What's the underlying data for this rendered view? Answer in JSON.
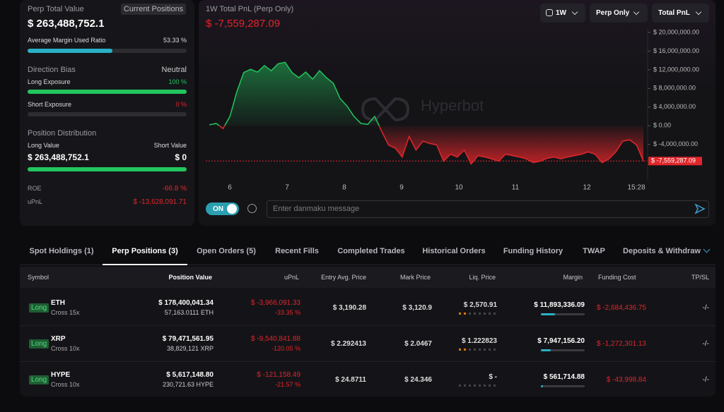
{
  "summary": {
    "title": "Perp Total Value",
    "badge": "Current Positions",
    "total_value": "$ 263,488,752.1",
    "margin_ratio_label": "Average Margin Used Ratio",
    "margin_ratio": {
      "value": 53.33,
      "label": "53.33 %"
    },
    "direction_bias_label": "Direction Bias",
    "direction_bias": "Neutral",
    "long_exposure_label": "Long Exposure",
    "long_exposure": {
      "value": 100,
      "label": "100 %"
    },
    "short_exposure_label": "Short Exposure",
    "short_exposure": {
      "value": 0,
      "label": "0 %"
    },
    "distribution_label": "Position Distribution",
    "long_value_label": "Long Value",
    "short_value_label": "Short Value",
    "long_value": "$ 263,488,752.1",
    "short_value": "$ 0",
    "roe_label": "ROE",
    "roe": "-66.8 %",
    "upnl_label": "uPnL",
    "upnl": "$ -13,628,091.71"
  },
  "pnl_chart": {
    "type": "line",
    "title": "1W Total PnL (Perp Only)",
    "current_label": "$ -7,559,287.09",
    "watermark": "Hyperbot",
    "controls": {
      "range": "1W",
      "scope": "Perp Only",
      "metric": "Total PnL"
    },
    "x_labels": [
      "6",
      "7",
      "8",
      "9",
      "10",
      "11",
      "12",
      "15:28"
    ],
    "values": [
      200000,
      500000,
      -600000,
      2000000,
      7300000,
      11400000,
      12100000,
      11500000,
      12900000,
      11800000,
      13300000,
      13600000,
      11400000,
      10300000,
      11500000,
      10000000,
      11800000,
      10300000,
      9100000,
      5800000,
      4200000,
      2000000,
      500000,
      300000,
      2000000,
      -1100000,
      -4100000,
      -4800000,
      -6700000,
      -2300000,
      -5200000,
      -3300000,
      -3800000,
      -4100000,
      -7600000,
      -6100000,
      -6700000,
      -5200000,
      -8200000,
      -6400000,
      -6700000,
      -7100000,
      -7600000,
      -6100000,
      -6400000,
      -6700000,
      -7100000,
      -7900000,
      -7600000,
      -7000000,
      -6700000,
      -7100000,
      -6700000,
      -6400000,
      -6100000,
      -5600000,
      -6100000,
      -7900000,
      -7100000,
      -5600000,
      -3300000,
      -3000000,
      -4100000,
      -7559287.09
    ],
    "ylim": [
      -11600000,
      20900000
    ],
    "yticks": [
      {
        "value": 20000000,
        "label": "$ 20,000,000.00"
      },
      {
        "value": 16000000,
        "label": "$ 16,000,000.00"
      },
      {
        "value": 12000000,
        "label": "$ 12,000,000.00"
      },
      {
        "value": 8000000,
        "label": "$ 8,000,000.00"
      },
      {
        "value": 4000000,
        "label": "$ 4,000,000.00"
      },
      {
        "value": 0,
        "label": "$ 0.00"
      },
      {
        "value": -4000000,
        "label": "$ -4,000,000.00"
      }
    ],
    "colors": {
      "positive": "#22c55e",
      "negative": "#e0262b"
    }
  },
  "danmaku": {
    "toggle": "ON",
    "placeholder": "Enter danmaku message"
  },
  "tabs": {
    "items": [
      "Spot Holdings (1)",
      "Perp Positions (3)",
      "Open Orders (5)",
      "Recent Fills",
      "Completed Trades",
      "Historical Orders",
      "Funding History",
      "TWAP",
      "Deposits & Withdraw"
    ],
    "active": 1
  },
  "table": {
    "headers": [
      "Symbol",
      "Position Value",
      "uPnL",
      "Entry Avg. Price",
      "Mark Price",
      "Liq. Price",
      "Margin",
      "Funding Cost",
      "TP/SL"
    ],
    "rows": [
      {
        "side": "Long",
        "symbol": "ETH",
        "margin_mode": "Cross 15x",
        "position_value": "$ 178,400,041.34",
        "position_size": "57,163.0111 ETH",
        "upnl": "$ -3,966,091.33",
        "upnl_pct": "-33.35 %",
        "entry_price": "$ 3,190.28",
        "mark_price": "$ 3,120.9",
        "liq_price": "$ 2,570.91",
        "margin": "$ 11,893,336.09",
        "funding_cost": "$ -2,684,436.75",
        "tp_sl": "-/-"
      },
      {
        "side": "Long",
        "symbol": "XRP",
        "margin_mode": "Cross 10x",
        "position_value": "$ 79,471,561.95",
        "position_size": "38,829,121 XRP",
        "upnl": "$ -9,540,841.88",
        "upnl_pct": "-120.05 %",
        "entry_price": "$ 2.292413",
        "mark_price": "$ 2.0467",
        "liq_price": "$ 1.222823",
        "margin": "$ 7,947,156.20",
        "funding_cost": "$ -1,272,301.13",
        "tp_sl": "-/-"
      },
      {
        "side": "Long",
        "symbol": "HYPE",
        "margin_mode": "Cross 10x",
        "position_value": "$ 5,617,148.80",
        "position_size": "230,721.63 HYPE",
        "upnl": "$ -121,158.49",
        "upnl_pct": "-21.57 %",
        "entry_price": "$ 24.8711",
        "mark_price": "$ 24.346",
        "liq_price": "$ -",
        "margin": "$ 561,714.88",
        "funding_cost": "$ -43,998.84",
        "tp_sl": "-/-"
      }
    ]
  }
}
